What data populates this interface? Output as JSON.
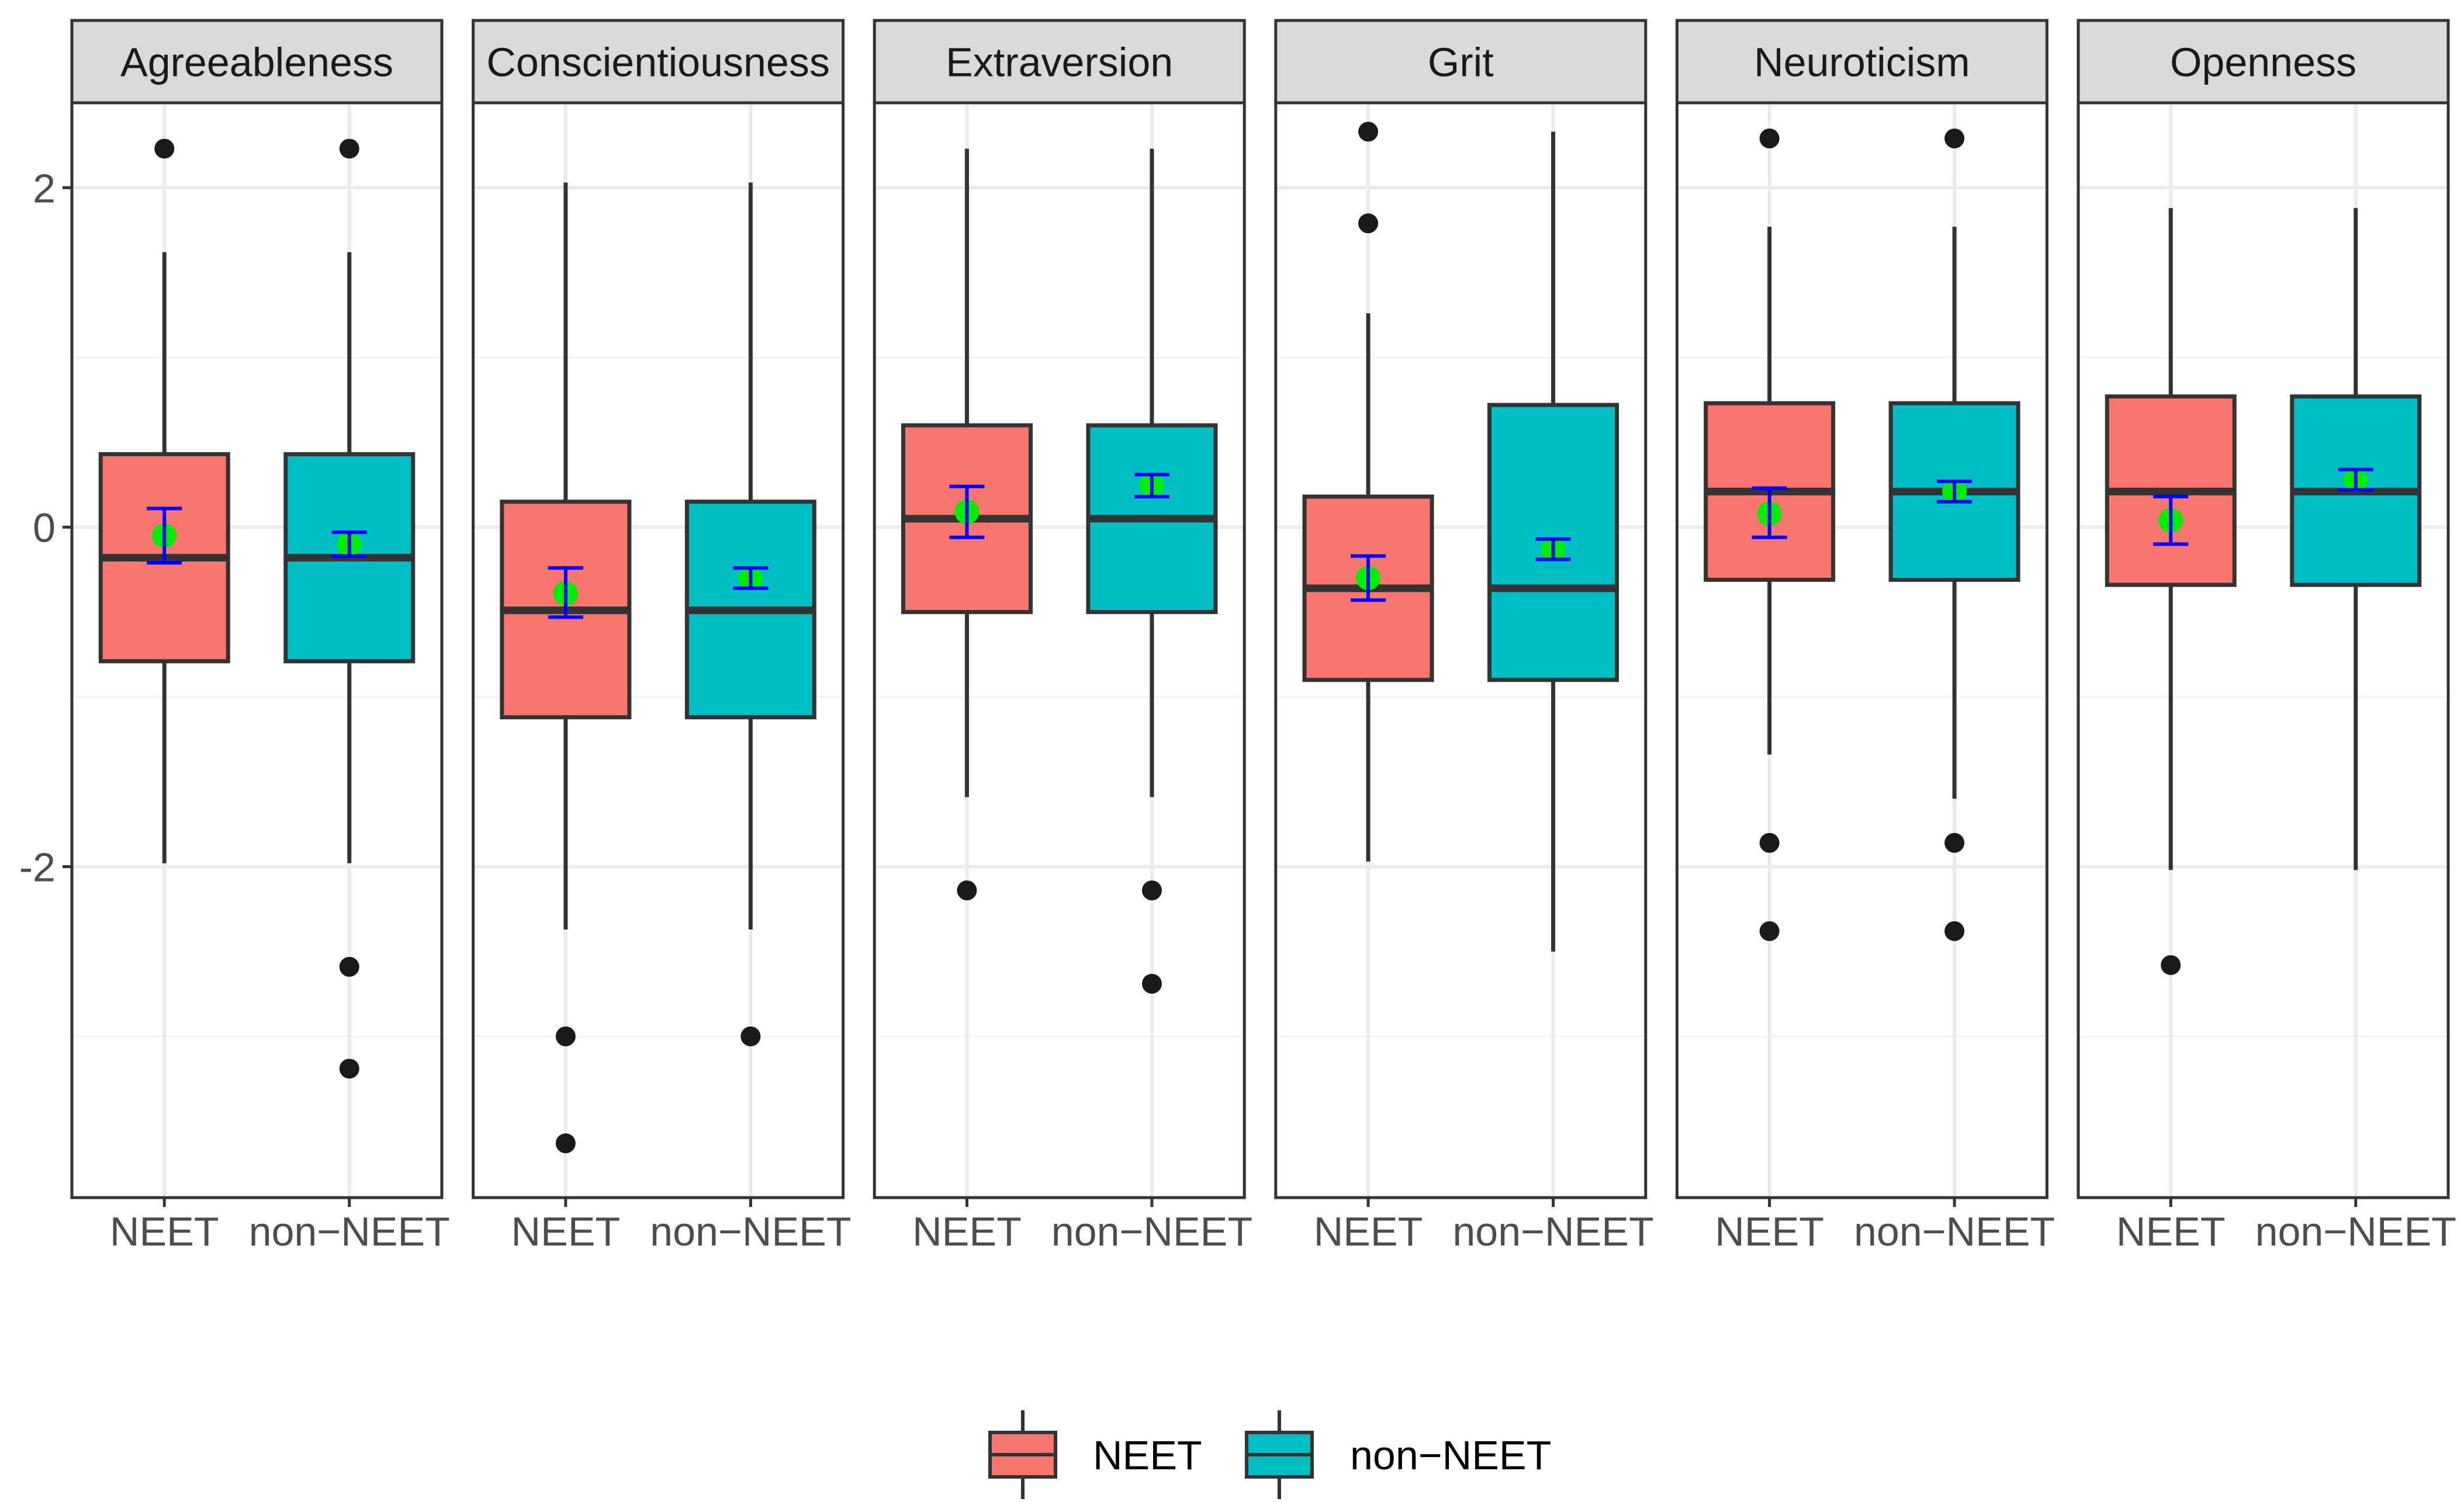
{
  "chart_data": {
    "type": "boxplot",
    "title": "",
    "xlabel": "",
    "ylabel": "",
    "ylim": [
      -3.95,
      2.5
    ],
    "y_ticks": [
      2,
      0,
      -2
    ],
    "y_tick_labels": [
      "2",
      "0",
      "-2"
    ],
    "grid": true,
    "groups": [
      "NEET",
      "non-NEET"
    ],
    "group_tick_labels": [
      "NEET",
      "non−NEET"
    ],
    "colors": {
      "NEET": "#F8766D",
      "non-NEET": "#00BFC4",
      "mean_point": "#00EE00",
      "error_bar": "#0000FF",
      "box_line": "#333333",
      "outlier": "#1a1a1a"
    },
    "legend": {
      "position": "bottom",
      "entries": [
        {
          "label": "NEET",
          "color": "#F8766D"
        },
        {
          "label": "non−NEET",
          "color": "#00BFC4"
        }
      ]
    },
    "facets": [
      {
        "name": "Agreeableness",
        "boxes": [
          {
            "group": "NEET",
            "lower_whisker": -1.98,
            "q1": -0.79,
            "median": -0.18,
            "q3": 0.43,
            "upper_whisker": 1.62,
            "outliers": [
              2.23
            ],
            "mean": -0.05,
            "ci": [
              -0.21,
              0.11
            ]
          },
          {
            "group": "non-NEET",
            "lower_whisker": -1.98,
            "q1": -0.79,
            "median": -0.18,
            "q3": 0.43,
            "upper_whisker": 1.62,
            "outliers": [
              2.23,
              -2.59,
              -3.19
            ],
            "mean": -0.1,
            "ci": [
              -0.17,
              -0.03
            ]
          }
        ]
      },
      {
        "name": "Conscientiousness",
        "boxes": [
          {
            "group": "NEET",
            "lower_whisker": -2.37,
            "q1": -1.12,
            "median": -0.49,
            "q3": 0.15,
            "upper_whisker": 2.03,
            "outliers": [
              -3.0,
              -3.63
            ],
            "mean": -0.39,
            "ci": [
              -0.53,
              -0.24
            ]
          },
          {
            "group": "non-NEET",
            "lower_whisker": -2.37,
            "q1": -1.12,
            "median": -0.49,
            "q3": 0.15,
            "upper_whisker": 2.03,
            "outliers": [
              -3.0
            ],
            "mean": -0.3,
            "ci": [
              -0.36,
              -0.24
            ]
          }
        ]
      },
      {
        "name": "Extraversion",
        "boxes": [
          {
            "group": "NEET",
            "lower_whisker": -1.59,
            "q1": -0.5,
            "median": 0.05,
            "q3": 0.6,
            "upper_whisker": 2.23,
            "outliers": [
              -2.14
            ],
            "mean": 0.09,
            "ci": [
              -0.06,
              0.24
            ]
          },
          {
            "group": "non-NEET",
            "lower_whisker": -1.59,
            "q1": -0.5,
            "median": 0.05,
            "q3": 0.6,
            "upper_whisker": 2.23,
            "outliers": [
              -2.14,
              -2.69
            ],
            "mean": 0.25,
            "ci": [
              0.18,
              0.31
            ]
          }
        ]
      },
      {
        "name": "Grit",
        "boxes": [
          {
            "group": "NEET",
            "lower_whisker": -1.97,
            "q1": -0.9,
            "median": -0.36,
            "q3": 0.18,
            "upper_whisker": 1.26,
            "outliers": [
              2.33,
              1.79
            ],
            "mean": -0.3,
            "ci": [
              -0.43,
              -0.17
            ]
          },
          {
            "group": "non-NEET",
            "lower_whisker": -2.5,
            "q1": -0.9,
            "median": -0.36,
            "q3": 0.72,
            "upper_whisker": 2.33,
            "outliers": [],
            "mean": -0.13,
            "ci": [
              -0.19,
              -0.07
            ]
          }
        ]
      },
      {
        "name": "Neuroticism",
        "boxes": [
          {
            "group": "NEET",
            "lower_whisker": -1.34,
            "q1": -0.31,
            "median": 0.21,
            "q3": 0.73,
            "upper_whisker": 1.77,
            "outliers": [
              2.29,
              -1.86,
              -2.38
            ],
            "mean": 0.08,
            "ci": [
              -0.06,
              0.23
            ]
          },
          {
            "group": "non-NEET",
            "lower_whisker": -1.6,
            "q1": -0.31,
            "median": 0.21,
            "q3": 0.73,
            "upper_whisker": 1.77,
            "outliers": [
              2.29,
              -1.86,
              -2.38
            ],
            "mean": 0.21,
            "ci": [
              0.15,
              0.27
            ]
          }
        ]
      },
      {
        "name": "Openness",
        "boxes": [
          {
            "group": "NEET",
            "lower_whisker": -2.02,
            "q1": -0.34,
            "median": 0.21,
            "q3": 0.77,
            "upper_whisker": 1.88,
            "outliers": [
              -2.58
            ],
            "mean": 0.04,
            "ci": [
              -0.1,
              0.18
            ]
          },
          {
            "group": "non-NEET",
            "lower_whisker": -2.02,
            "q1": -0.34,
            "median": 0.21,
            "q3": 0.77,
            "upper_whisker": 1.88,
            "outliers": [],
            "mean": 0.28,
            "ci": [
              0.22,
              0.34
            ]
          }
        ]
      }
    ]
  }
}
